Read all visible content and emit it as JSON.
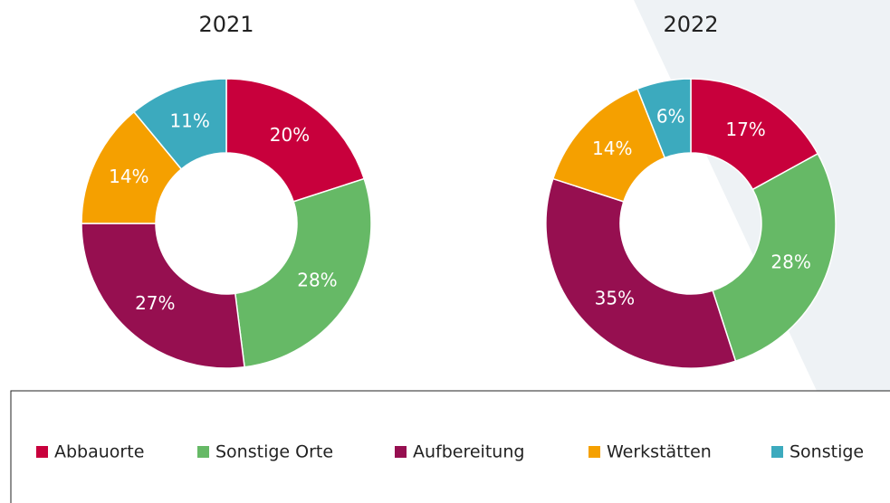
{
  "chart_data": [
    {
      "type": "donut",
      "title": "2021",
      "categories": [
        "Abbauorte",
        "Sonstige Orte",
        "Aufbereitung",
        "Werkstätten",
        "Sonstige"
      ],
      "values": [
        20,
        28,
        27,
        14,
        11
      ],
      "value_labels": [
        "20%",
        "28%",
        "27%",
        "14%",
        "11%"
      ],
      "colors": [
        "#c8003c",
        "#66b966",
        "#960f50",
        "#f5a000",
        "#3caabe"
      ]
    },
    {
      "type": "donut",
      "title": "2022",
      "categories": [
        "Abbauorte",
        "Sonstige Orte",
        "Aufbereitung",
        "Werkstätten",
        "Sonstige"
      ],
      "values": [
        17,
        28,
        35,
        14,
        6
      ],
      "value_labels": [
        "17%",
        "28%",
        "35%",
        "14%",
        "6%"
      ],
      "colors": [
        "#c8003c",
        "#66b966",
        "#960f50",
        "#f5a000",
        "#3caabe"
      ]
    }
  ]
}
